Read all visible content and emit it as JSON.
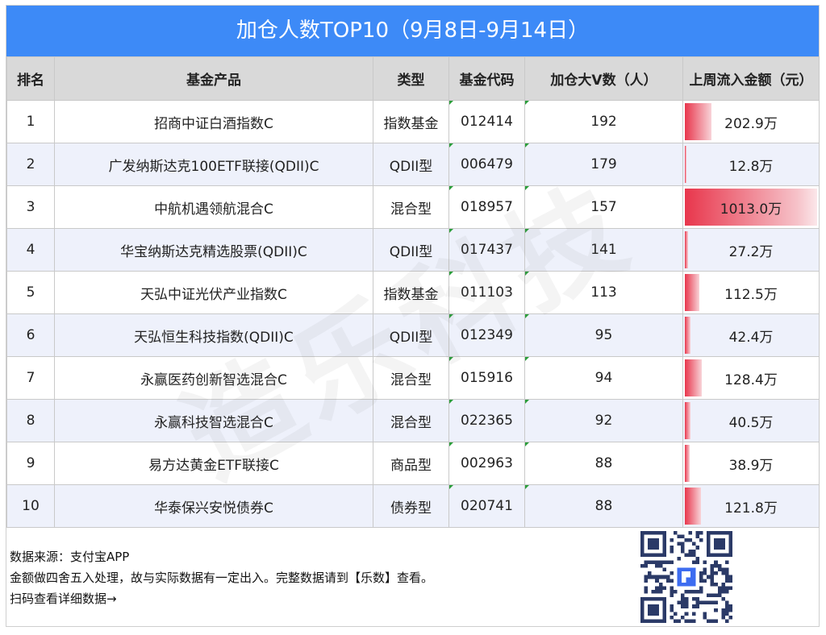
{
  "title": "加仓人数TOP10（9月8日-9月14日）",
  "headers": [
    "排名",
    "基金产品",
    "类型",
    "基金代码",
    "加仓大V数（人）",
    "上周流入金额（元）"
  ],
  "rows": [
    {
      "rank": "1",
      "name": "招商中证白酒指数C",
      "type": "指数基金",
      "code": "012414",
      "count": "192",
      "flow": "202.9万",
      "flow_value": 202.9
    },
    {
      "rank": "2",
      "name": "广发纳斯达克100ETF联接(QDII)C",
      "type": "QDII型",
      "code": "006479",
      "count": "179",
      "flow": "12.8万",
      "flow_value": 12.8
    },
    {
      "rank": "3",
      "name": "中航机遇领航混合C",
      "type": "混合型",
      "code": "018957",
      "count": "157",
      "flow": "1013.0万",
      "flow_value": 1013.0
    },
    {
      "rank": "4",
      "name": "华宝纳斯达克精选股票(QDII)C",
      "type": "QDII型",
      "code": "017437",
      "count": "141",
      "flow": "27.2万",
      "flow_value": 27.2
    },
    {
      "rank": "5",
      "name": "天弘中证光伏产业指数C",
      "type": "指数基金",
      "code": "011103",
      "count": "113",
      "flow": "112.5万",
      "flow_value": 112.5
    },
    {
      "rank": "6",
      "name": "天弘恒生科技指数(QDII)C",
      "type": "QDII型",
      "code": "012349",
      "count": "95",
      "flow": "42.4万",
      "flow_value": 42.4
    },
    {
      "rank": "7",
      "name": "永赢医药创新智选混合C",
      "type": "混合型",
      "code": "015916",
      "count": "94",
      "flow": "128.4万",
      "flow_value": 128.4
    },
    {
      "rank": "8",
      "name": "永赢科技智选混合C",
      "type": "混合型",
      "code": "022365",
      "count": "92",
      "flow": "40.5万",
      "flow_value": 40.5
    },
    {
      "rank": "9",
      "name": "易方达黄金ETF联接C",
      "type": "商品型",
      "code": "002963",
      "count": "88",
      "flow": "38.9万",
      "flow_value": 38.9
    },
    {
      "rank": "10",
      "name": "华泰保兴安悦债券C",
      "type": "债券型",
      "code": "020741",
      "count": "88",
      "flow": "121.8万",
      "flow_value": 121.8
    }
  ],
  "footer": {
    "line1": "数据来源：支付宝APP",
    "line2": "金额做四舍五入处理，故与实际数据有一定出入。完整数据请到【乐数】查看。",
    "line3": "扫码查看详细数据→"
  },
  "colors": {
    "title_bg": "#3d8af7",
    "bar": "#e8364c",
    "header_bg": "#d9d9d9",
    "even_row": "#eef1fb"
  },
  "qr_icon": "qr-code-icon"
}
